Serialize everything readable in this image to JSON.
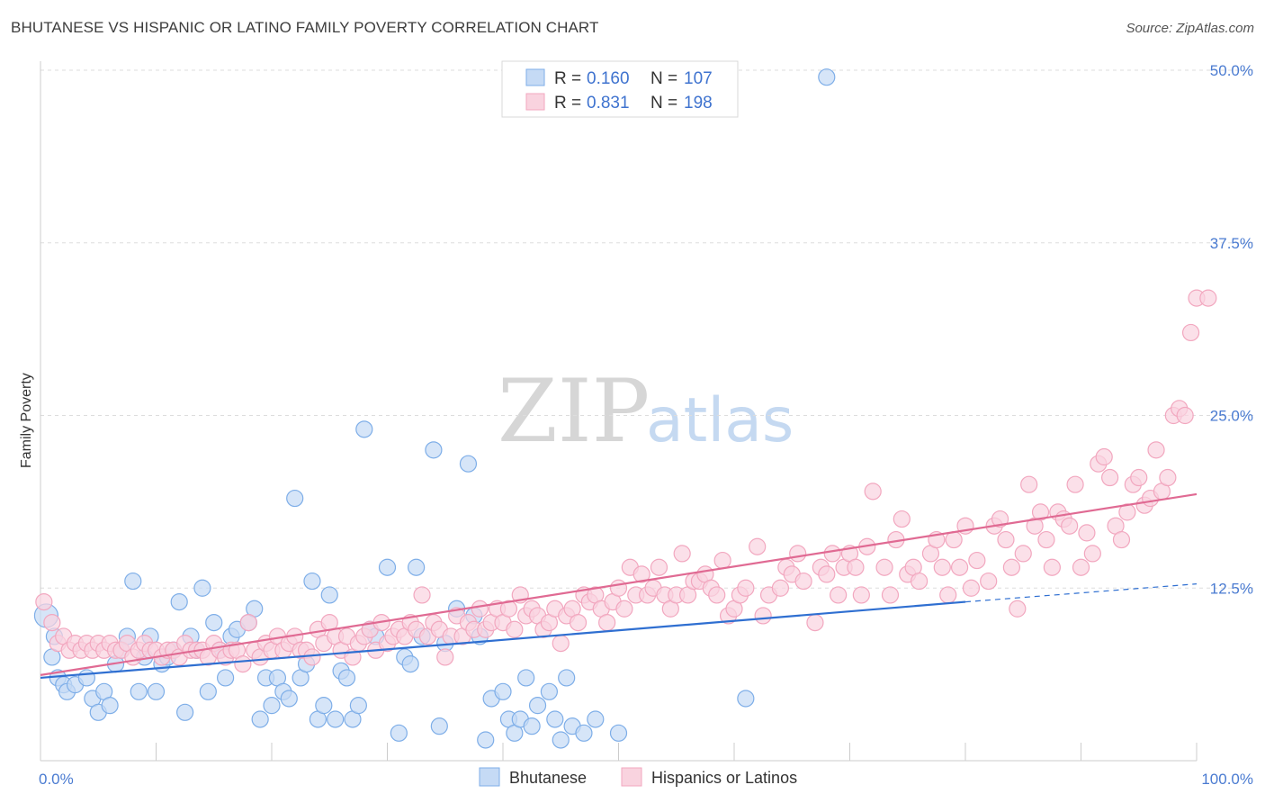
{
  "title": "BHUTANESE VS HISPANIC OR LATINO FAMILY POVERTY CORRELATION CHART",
  "source": "Source: ZipAtlas.com",
  "watermark": {
    "zip": "ZIP",
    "atlas": "atlas"
  },
  "legend": {
    "rows": [
      {
        "r_label": "R =",
        "r_value": "0.160",
        "n_label": "N =",
        "n_value": "107"
      },
      {
        "r_label": "R =",
        "r_value": "0.831",
        "n_label": "N =",
        "n_value": "198"
      }
    ]
  },
  "bottom_legend": [
    "Bhutanese",
    "Hispanics or Latinos"
  ],
  "chart_data": {
    "type": "scatter",
    "title": "BHUTANESE VS HISPANIC OR LATINO FAMILY POVERTY CORRELATION CHART",
    "xlabel": "",
    "ylabel": "Family Poverty",
    "xlim": [
      0,
      100
    ],
    "ylim": [
      0,
      50
    ],
    "x_tick_labels": [
      "0.0%",
      "100.0%"
    ],
    "y_ticks": [
      12.5,
      25.0,
      37.5,
      50.0
    ],
    "y_tick_labels": [
      "12.5%",
      "25.0%",
      "37.5%",
      "50.0%"
    ],
    "grid": "horizontal dashed",
    "legend_position": "top-center",
    "series": [
      {
        "name": "Bhutanese",
        "color": "#7eaee8",
        "fill": "#c5daf5",
        "line_color": "#2f6fd1",
        "trend": {
          "x": [
            0,
            80
          ],
          "y": [
            6.0,
            11.5
          ],
          "dashed_to": [
            100,
            12.8
          ]
        },
        "points": [
          [
            0.5,
            10.5
          ],
          [
            1,
            7.5
          ],
          [
            1.2,
            9
          ],
          [
            1.5,
            6
          ],
          [
            2,
            5.5
          ],
          [
            2.3,
            5
          ],
          [
            3,
            5.5
          ],
          [
            4,
            6
          ],
          [
            4.5,
            4.5
          ],
          [
            5,
            3.5
          ],
          [
            5.5,
            5
          ],
          [
            6,
            4
          ],
          [
            6.5,
            7
          ],
          [
            7,
            8
          ],
          [
            7.5,
            9
          ],
          [
            8,
            13
          ],
          [
            8.5,
            5
          ],
          [
            9,
            7.5
          ],
          [
            9.5,
            9
          ],
          [
            10,
            5
          ],
          [
            10.5,
            7
          ],
          [
            11,
            7.5
          ],
          [
            11.5,
            8
          ],
          [
            12,
            11.5
          ],
          [
            12.5,
            3.5
          ],
          [
            13,
            9
          ],
          [
            13.5,
            8
          ],
          [
            14,
            12.5
          ],
          [
            14.5,
            5
          ],
          [
            15,
            10
          ],
          [
            15.5,
            8
          ],
          [
            16,
            6
          ],
          [
            16.5,
            9
          ],
          [
            17,
            9.5
          ],
          [
            18,
            10
          ],
          [
            18.5,
            11
          ],
          [
            19,
            3
          ],
          [
            19.5,
            6
          ],
          [
            20,
            4
          ],
          [
            20.5,
            6
          ],
          [
            21,
            5
          ],
          [
            21.5,
            4.5
          ],
          [
            22,
            19
          ],
          [
            22.5,
            6
          ],
          [
            23,
            7
          ],
          [
            23.5,
            13
          ],
          [
            24,
            3
          ],
          [
            24.5,
            4
          ],
          [
            25,
            12
          ],
          [
            25.5,
            3
          ],
          [
            26,
            6.5
          ],
          [
            26.5,
            6
          ],
          [
            27,
            3
          ],
          [
            27.5,
            4
          ],
          [
            28,
            24
          ],
          [
            28.5,
            9.5
          ],
          [
            29,
            9
          ],
          [
            30,
            14
          ],
          [
            31,
            2
          ],
          [
            31.5,
            7.5
          ],
          [
            32,
            7
          ],
          [
            32.5,
            14
          ],
          [
            33,
            9
          ],
          [
            34,
            22.5
          ],
          [
            34.5,
            2.5
          ],
          [
            35,
            8.5
          ],
          [
            36,
            11
          ],
          [
            37,
            21.5
          ],
          [
            37.5,
            10.5
          ],
          [
            38,
            9
          ],
          [
            38.5,
            1.5
          ],
          [
            39,
            4.5
          ],
          [
            40,
            5
          ],
          [
            40.5,
            3
          ],
          [
            41,
            2
          ],
          [
            41.5,
            3
          ],
          [
            42,
            6
          ],
          [
            42.5,
            2.5
          ],
          [
            43,
            4
          ],
          [
            44,
            5
          ],
          [
            44.5,
            3
          ],
          [
            45,
            1.5
          ],
          [
            45.5,
            6
          ],
          [
            46,
            2.5
          ],
          [
            47,
            2
          ],
          [
            48,
            3
          ],
          [
            50,
            2
          ],
          [
            61,
            4.5
          ],
          [
            68,
            49.5
          ]
        ]
      },
      {
        "name": "Hispanics or Latinos",
        "color": "#f2a7bf",
        "fill": "#f9d3df",
        "line_color": "#e06a93",
        "trend": {
          "x": [
            0,
            100
          ],
          "y": [
            6.2,
            19.3
          ]
        },
        "points": [
          [
            0.3,
            11.5
          ],
          [
            1,
            10
          ],
          [
            1.5,
            8.5
          ],
          [
            2,
            9
          ],
          [
            2.5,
            8
          ],
          [
            3,
            8.5
          ],
          [
            3.5,
            8
          ],
          [
            4,
            8.5
          ],
          [
            4.5,
            8
          ],
          [
            5,
            8.5
          ],
          [
            5.5,
            8
          ],
          [
            6,
            8.5
          ],
          [
            6.5,
            8
          ],
          [
            7,
            8
          ],
          [
            7.5,
            8.5
          ],
          [
            8,
            7.5
          ],
          [
            8.5,
            8
          ],
          [
            9,
            8.5
          ],
          [
            9.5,
            8
          ],
          [
            10,
            8
          ],
          [
            10.5,
            7.5
          ],
          [
            11,
            8
          ],
          [
            11.5,
            8
          ],
          [
            12,
            7.5
          ],
          [
            12.5,
            8.5
          ],
          [
            13,
            8
          ],
          [
            13.5,
            8
          ],
          [
            14,
            8
          ],
          [
            14.5,
            7.5
          ],
          [
            15,
            8.5
          ],
          [
            15.5,
            8
          ],
          [
            16,
            7.5
          ],
          [
            16.5,
            8
          ],
          [
            17,
            8
          ],
          [
            17.5,
            7
          ],
          [
            18,
            10
          ],
          [
            18.5,
            8
          ],
          [
            19,
            7.5
          ],
          [
            19.5,
            8.5
          ],
          [
            20,
            8
          ],
          [
            20.5,
            9
          ],
          [
            21,
            8
          ],
          [
            21.5,
            8.5
          ],
          [
            22,
            9
          ],
          [
            22.5,
            8
          ],
          [
            23,
            8
          ],
          [
            23.5,
            7.5
          ],
          [
            24,
            9.5
          ],
          [
            24.5,
            8.5
          ],
          [
            25,
            10
          ],
          [
            25.5,
            9
          ],
          [
            26,
            8
          ],
          [
            26.5,
            9
          ],
          [
            27,
            7.5
          ],
          [
            27.5,
            8.5
          ],
          [
            28,
            9
          ],
          [
            28.5,
            9.5
          ],
          [
            29,
            8
          ],
          [
            29.5,
            10
          ],
          [
            30,
            8.5
          ],
          [
            30.5,
            9
          ],
          [
            31,
            9.5
          ],
          [
            31.5,
            9
          ],
          [
            32,
            10
          ],
          [
            32.5,
            9.5
          ],
          [
            33,
            12
          ],
          [
            33.5,
            9
          ],
          [
            34,
            10
          ],
          [
            34.5,
            9.5
          ],
          [
            35,
            7.5
          ],
          [
            35.5,
            9
          ],
          [
            36,
            10.5
          ],
          [
            36.5,
            9
          ],
          [
            37,
            10
          ],
          [
            37.5,
            9.5
          ],
          [
            38,
            11
          ],
          [
            38.5,
            9.5
          ],
          [
            39,
            10
          ],
          [
            39.5,
            11
          ],
          [
            40,
            10
          ],
          [
            40.5,
            11
          ],
          [
            41,
            9.5
          ],
          [
            41.5,
            12
          ],
          [
            42,
            10.5
          ],
          [
            42.5,
            11
          ],
          [
            43,
            10.5
          ],
          [
            43.5,
            9.5
          ],
          [
            44,
            10
          ],
          [
            44.5,
            11
          ],
          [
            45,
            8.5
          ],
          [
            45.5,
            10.5
          ],
          [
            46,
            11
          ],
          [
            46.5,
            10
          ],
          [
            47,
            12
          ],
          [
            47.5,
            11.5
          ],
          [
            48,
            12
          ],
          [
            48.5,
            11
          ],
          [
            49,
            10
          ],
          [
            49.5,
            11.5
          ],
          [
            50,
            12.5
          ],
          [
            50.5,
            11
          ],
          [
            51,
            14
          ],
          [
            51.5,
            12
          ],
          [
            52,
            13.5
          ],
          [
            52.5,
            12
          ],
          [
            53,
            12.5
          ],
          [
            53.5,
            14
          ],
          [
            54,
            12
          ],
          [
            54.5,
            11
          ],
          [
            55,
            12
          ],
          [
            55.5,
            15
          ],
          [
            56,
            12
          ],
          [
            56.5,
            13
          ],
          [
            57,
            13
          ],
          [
            57.5,
            13.5
          ],
          [
            58,
            12.5
          ],
          [
            58.5,
            12
          ],
          [
            59,
            14.5
          ],
          [
            59.5,
            10.5
          ],
          [
            60,
            11
          ],
          [
            60.5,
            12
          ],
          [
            61,
            12.5
          ],
          [
            62,
            15.5
          ],
          [
            62.5,
            10.5
          ],
          [
            63,
            12
          ],
          [
            64,
            12.5
          ],
          [
            64.5,
            14
          ],
          [
            65,
            13.5
          ],
          [
            65.5,
            15
          ],
          [
            66,
            13
          ],
          [
            67,
            10
          ],
          [
            67.5,
            14
          ],
          [
            68,
            13.5
          ],
          [
            68.5,
            15
          ],
          [
            69,
            12
          ],
          [
            69.5,
            14
          ],
          [
            70,
            15
          ],
          [
            70.5,
            14
          ],
          [
            71,
            12
          ],
          [
            71.5,
            15.5
          ],
          [
            72,
            19.5
          ],
          [
            73,
            14
          ],
          [
            73.5,
            12
          ],
          [
            74,
            16
          ],
          [
            74.5,
            17.5
          ],
          [
            75,
            13.5
          ],
          [
            75.5,
            14
          ],
          [
            76,
            13
          ],
          [
            77,
            15
          ],
          [
            77.5,
            16
          ],
          [
            78,
            14
          ],
          [
            78.5,
            12
          ],
          [
            79,
            16
          ],
          [
            79.5,
            14
          ],
          [
            80,
            17
          ],
          [
            80.5,
            12.5
          ],
          [
            81,
            14.5
          ],
          [
            82,
            13
          ],
          [
            82.5,
            17
          ],
          [
            83,
            17.5
          ],
          [
            83.5,
            16
          ],
          [
            84,
            14
          ],
          [
            84.5,
            11
          ],
          [
            85,
            15
          ],
          [
            85.5,
            20
          ],
          [
            86,
            17
          ],
          [
            86.5,
            18
          ],
          [
            87,
            16
          ],
          [
            87.5,
            14
          ],
          [
            88,
            18
          ],
          [
            88.5,
            17.5
          ],
          [
            89,
            17
          ],
          [
            89.5,
            20
          ],
          [
            90,
            14
          ],
          [
            90.5,
            16.5
          ],
          [
            91,
            15
          ],
          [
            91.5,
            21.5
          ],
          [
            92,
            22
          ],
          [
            92.5,
            20.5
          ],
          [
            93,
            17
          ],
          [
            93.5,
            16
          ],
          [
            94,
            18
          ],
          [
            94.5,
            20
          ],
          [
            95,
            20.5
          ],
          [
            95.5,
            18.5
          ],
          [
            96,
            19
          ],
          [
            96.5,
            22.5
          ],
          [
            97,
            19.5
          ],
          [
            97.5,
            20.5
          ],
          [
            98,
            25
          ],
          [
            98.5,
            25.5
          ],
          [
            99,
            25
          ],
          [
            99.5,
            31
          ],
          [
            100,
            33.5
          ],
          [
            101,
            33.5
          ]
        ]
      }
    ]
  }
}
